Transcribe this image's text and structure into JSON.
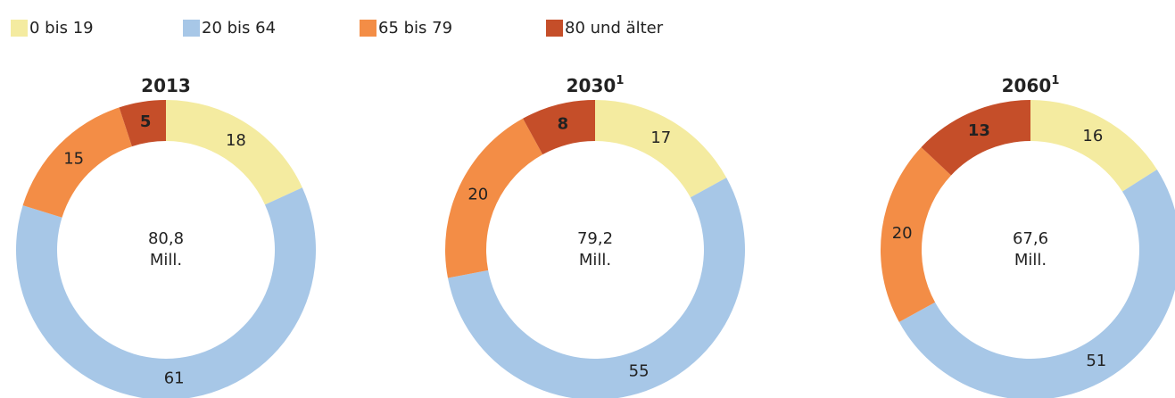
{
  "legend": {
    "names": [
      "0 bis 19",
      "20 bis 64",
      "65 bis 79",
      "80 und älter"
    ],
    "colors": [
      "#f4eba0",
      "#a7c7e7",
      "#f38d46",
      "#c54e29"
    ]
  },
  "chart_data": [
    {
      "type": "pie",
      "donut": true,
      "title": "2013",
      "center_text": [
        "80,8",
        "Mill."
      ],
      "values": [
        18,
        61,
        15,
        5
      ]
    },
    {
      "type": "pie",
      "donut": true,
      "title": "2030",
      "title_note": "1",
      "center_text": [
        "79,2",
        "Mill."
      ],
      "values": [
        17,
        55,
        20,
        8
      ]
    },
    {
      "type": "pie",
      "donut": true,
      "title": "2060",
      "title_note": "1",
      "center_text": [
        "67,6",
        "Mill."
      ],
      "values": [
        16,
        51,
        20,
        13
      ]
    }
  ]
}
